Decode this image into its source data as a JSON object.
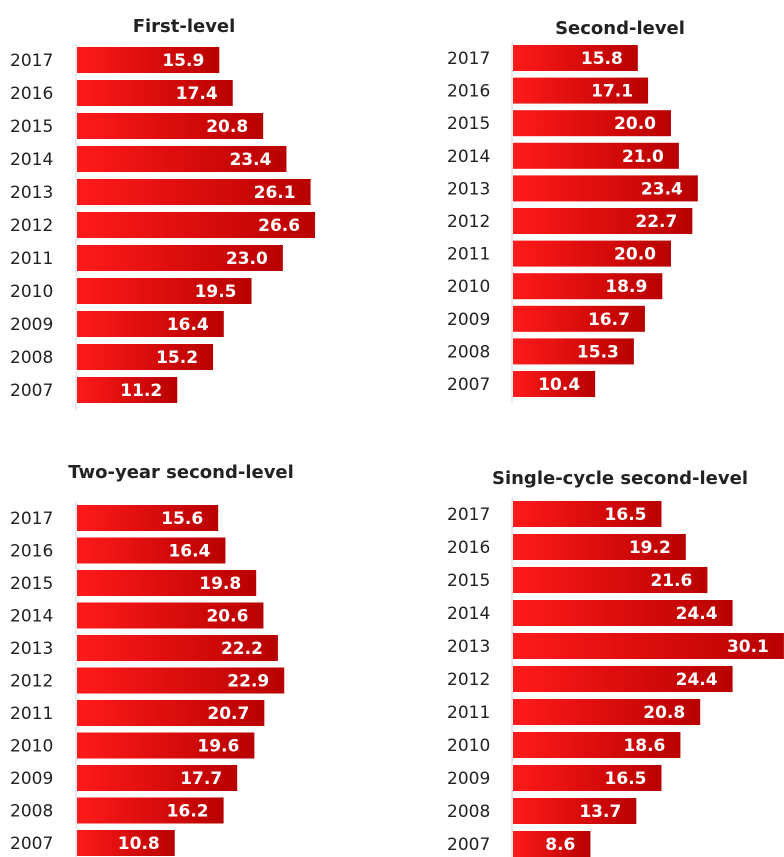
{
  "colors": {
    "bar_light": "#ff1a1a",
    "bar_dark": "#b80000",
    "label": "#ffffff",
    "text": "#222222",
    "axis": "#d4d4d4"
  },
  "chart_data": [
    {
      "type": "bar",
      "orientation": "horizontal",
      "title": "First-level",
      "categories": [
        "2017",
        "2016",
        "2015",
        "2014",
        "2013",
        "2012",
        "2011",
        "2010",
        "2009",
        "2008",
        "2007"
      ],
      "values": [
        15.9,
        17.4,
        20.8,
        23.4,
        26.1,
        26.6,
        23.0,
        19.5,
        16.4,
        15.2,
        11.2
      ],
      "value_labels": [
        "15.9",
        "17.4",
        "20.8",
        "23.4",
        "26.1",
        "26.6",
        "23.0",
        "19.5",
        "16.4",
        "15.2",
        "11.2"
      ]
    },
    {
      "type": "bar",
      "orientation": "horizontal",
      "title": "Second-level",
      "categories": [
        "2017",
        "2016",
        "2015",
        "2014",
        "2013",
        "2012",
        "2011",
        "2010",
        "2009",
        "2008",
        "2007"
      ],
      "values": [
        15.8,
        17.1,
        20.0,
        21.0,
        23.4,
        22.7,
        20.0,
        18.9,
        16.7,
        15.3,
        10.4
      ],
      "value_labels": [
        "15.8",
        "17.1",
        "20.0",
        "21.0",
        "23.4",
        "22.7",
        "20.0",
        "18.9",
        "16.7",
        "15.3",
        "10.4"
      ]
    },
    {
      "type": "bar",
      "orientation": "horizontal",
      "title": "Two-year second-level",
      "categories": [
        "2017",
        "2016",
        "2015",
        "2014",
        "2013",
        "2012",
        "2011",
        "2010",
        "2009",
        "2008",
        "2007"
      ],
      "values": [
        15.6,
        16.4,
        19.8,
        20.6,
        22.2,
        22.9,
        20.7,
        19.6,
        17.7,
        16.2,
        10.8
      ],
      "value_labels": [
        "15.6",
        "16.4",
        "19.8",
        "20.6",
        "22.2",
        "22.9",
        "20.7",
        "19.6",
        "17.7",
        "16.2",
        "10.8"
      ]
    },
    {
      "type": "bar",
      "orientation": "horizontal",
      "title": "Single-cycle second-level",
      "categories": [
        "2017",
        "2016",
        "2015",
        "2014",
        "2013",
        "2012",
        "2011",
        "2010",
        "2009",
        "2008",
        "2007"
      ],
      "values": [
        16.5,
        19.2,
        21.6,
        24.4,
        30.1,
        24.4,
        20.8,
        18.6,
        16.5,
        13.7,
        8.6
      ],
      "value_labels": [
        "16.5",
        "19.2",
        "21.6",
        "24.4",
        "30.1",
        "24.4",
        "20.8",
        "18.6",
        "16.5",
        "13.7",
        "8.6"
      ]
    }
  ]
}
